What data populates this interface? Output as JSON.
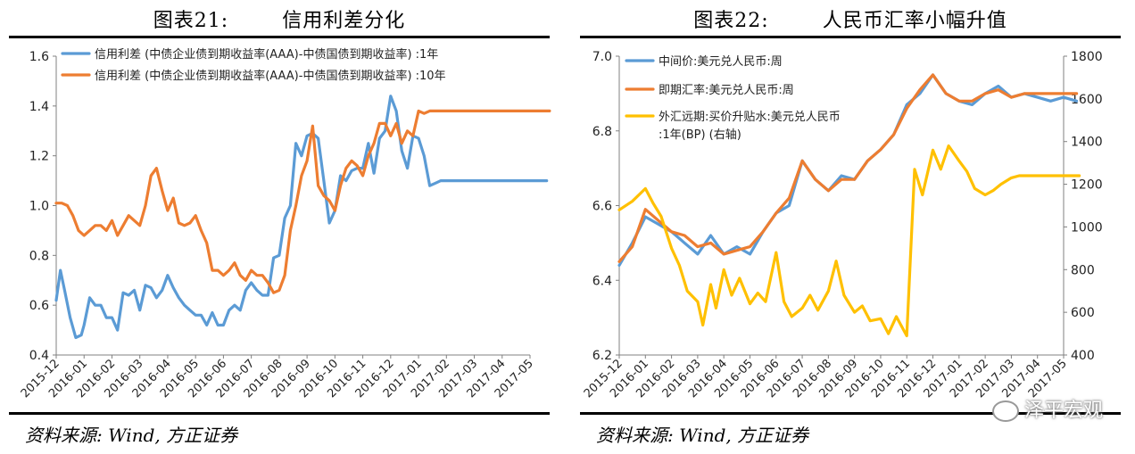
{
  "left": {
    "title_num": "图表21:",
    "title_text": "信用利差分化",
    "source": "资料来源: Wind, 方正证券"
  },
  "right": {
    "title_num": "图表22:",
    "title_text": "人民币汇率小幅升值",
    "source": "资料来源: Wind, 方正证券"
  },
  "watermark": "泽平宏观",
  "chart_data": [
    {
      "type": "line",
      "title": "信用利差分化",
      "x_ticks": [
        "2015-12",
        "2016-01",
        "2016-02",
        "2016-03",
        "2016-04",
        "2016-05",
        "2016-06",
        "2016-07",
        "2016-08",
        "2016-09",
        "2016-10",
        "2016-11",
        "2016-12",
        "2017-01",
        "2017-02",
        "2017-03",
        "2017-04",
        "2017-05"
      ],
      "ylim": [
        0.4,
        1.6
      ],
      "y_ticks": [
        "0.4",
        "0.6",
        "0.8",
        "1.0",
        "1.2",
        "1.4",
        "1.6"
      ],
      "legend_position": "top-left",
      "series": [
        {
          "name": "信用利差 (中债企业债到期收益率(AAA)-中债国债到期收益率) :1年",
          "color": "#5b9bd5",
          "x": [
            0,
            0.15,
            0.3,
            0.5,
            0.7,
            0.9,
            1.0,
            1.2,
            1.4,
            1.6,
            1.8,
            2.0,
            2.2,
            2.4,
            2.6,
            2.8,
            3.0,
            3.2,
            3.4,
            3.6,
            3.8,
            4.0,
            4.2,
            4.4,
            4.6,
            4.8,
            5.0,
            5.2,
            5.4,
            5.6,
            5.8,
            6.0,
            6.2,
            6.4,
            6.6,
            6.8,
            7.0,
            7.2,
            7.4,
            7.6,
            7.8,
            8.0,
            8.2,
            8.4,
            8.6,
            8.8,
            9.0,
            9.2,
            9.4,
            9.6,
            9.8,
            10.0,
            10.2,
            10.4,
            10.6,
            10.8,
            11.0,
            11.2,
            11.4,
            11.6,
            11.8,
            12.0,
            12.2,
            12.4,
            12.6,
            12.8,
            13.0,
            13.2,
            13.4,
            13.6,
            13.8,
            14.0,
            14.2,
            14.4,
            14.6,
            14.8,
            15.0,
            15.2,
            15.4,
            15.6,
            15.8,
            16.0,
            16.2,
            16.4,
            16.6,
            16.8,
            17.0,
            17.2,
            17.4,
            17.6
          ],
          "y": [
            0.62,
            0.74,
            0.66,
            0.55,
            0.47,
            0.48,
            0.52,
            0.63,
            0.6,
            0.6,
            0.55,
            0.55,
            0.5,
            0.65,
            0.64,
            0.66,
            0.58,
            0.68,
            0.67,
            0.63,
            0.66,
            0.72,
            0.67,
            0.63,
            0.6,
            0.58,
            0.56,
            0.56,
            0.52,
            0.57,
            0.52,
            0.52,
            0.58,
            0.6,
            0.58,
            0.66,
            0.69,
            0.66,
            0.64,
            0.64,
            0.79,
            0.8,
            0.95,
            1.0,
            1.25,
            1.2,
            1.28,
            1.29,
            1.27,
            1.1,
            0.93,
            0.98,
            1.12,
            1.1,
            1.14,
            1.15,
            1.15,
            1.25,
            1.13,
            1.27,
            1.3,
            1.44,
            1.38,
            1.22,
            1.15,
            1.28,
            1.27,
            1.2,
            1.08,
            1.09,
            1.1,
            1.1,
            1.1,
            1.1,
            1.1,
            1.1,
            1.1,
            1.1,
            1.1,
            1.1,
            1.1,
            1.1,
            1.1,
            1.1,
            1.1,
            1.1,
            1.1,
            1.1,
            1.1,
            1.1
          ]
        },
        {
          "name": "信用利差 (中债企业债到期收益率(AAA)-中债国债到期收益率) :10年",
          "color": "#ed7d31",
          "x": [
            0,
            0.2,
            0.4,
            0.6,
            0.8,
            1.0,
            1.2,
            1.4,
            1.6,
            1.8,
            2.0,
            2.2,
            2.4,
            2.6,
            2.8,
            3.0,
            3.2,
            3.4,
            3.6,
            3.8,
            4.0,
            4.2,
            4.4,
            4.6,
            4.8,
            5.0,
            5.2,
            5.4,
            5.6,
            5.8,
            6.0,
            6.2,
            6.4,
            6.6,
            6.8,
            7.0,
            7.2,
            7.4,
            7.6,
            7.8,
            8.0,
            8.2,
            8.4,
            8.6,
            8.8,
            9.0,
            9.2,
            9.4,
            9.6,
            9.8,
            10.0,
            10.2,
            10.4,
            10.6,
            10.8,
            11.0,
            11.2,
            11.4,
            11.6,
            11.8,
            12.0,
            12.2,
            12.4,
            12.6,
            12.8,
            13.0,
            13.2,
            13.4,
            13.6,
            13.8,
            14.0,
            14.2,
            14.4,
            14.6,
            14.8,
            15.0,
            15.2,
            15.4,
            15.6,
            15.8,
            16.0,
            16.2,
            16.4,
            16.6,
            16.8,
            17.0,
            17.2,
            17.4,
            17.6,
            17.7
          ],
          "y": [
            1.01,
            1.01,
            1.0,
            0.96,
            0.9,
            0.88,
            0.9,
            0.92,
            0.92,
            0.9,
            0.94,
            0.88,
            0.92,
            0.96,
            0.94,
            0.92,
            1.0,
            1.12,
            1.15,
            1.06,
            0.98,
            1.03,
            0.93,
            0.92,
            0.93,
            0.96,
            0.9,
            0.85,
            0.74,
            0.74,
            0.72,
            0.74,
            0.77,
            0.72,
            0.7,
            0.74,
            0.72,
            0.72,
            0.69,
            0.65,
            0.66,
            0.72,
            0.9,
            1.0,
            1.12,
            1.18,
            1.32,
            1.08,
            1.04,
            1.02,
            0.98,
            1.08,
            1.15,
            1.18,
            1.16,
            1.12,
            1.2,
            1.25,
            1.33,
            1.33,
            1.28,
            1.33,
            1.25,
            1.3,
            1.28,
            1.38,
            1.37,
            1.38,
            1.38,
            1.38,
            1.38,
            1.38,
            1.38,
            1.38,
            1.38,
            1.38,
            1.38,
            1.38,
            1.38,
            1.38,
            1.38,
            1.38,
            1.38,
            1.38,
            1.38,
            1.38,
            1.38,
            1.38,
            1.38,
            1.38
          ]
        }
      ]
    },
    {
      "type": "line",
      "title": "人民币汇率小幅升值",
      "x_ticks": [
        "2015-12",
        "2016-01",
        "2016-02",
        "2016-03",
        "2016-04",
        "2016-05",
        "2016-06",
        "2016-07",
        "2016-08",
        "2016-09",
        "2016-10",
        "2016-11",
        "2016-12",
        "2017-01",
        "2017-02",
        "2017-03",
        "2017-04",
        "2017-05"
      ],
      "ylim": [
        6.2,
        7.0
      ],
      "y_ticks": [
        "6.2",
        "6.4",
        "6.6",
        "6.8",
        "7.0"
      ],
      "y2lim": [
        400,
        1800
      ],
      "y2_ticks": [
        "400",
        "600",
        "800",
        "1000",
        "1200",
        "1400",
        "1600",
        "1800"
      ],
      "legend_position": "top-left",
      "series": [
        {
          "name": "中间价:美元兑人民币:周",
          "color": "#5b9bd5",
          "axis": "left",
          "x": [
            0,
            0.5,
            1.0,
            1.5,
            2.0,
            2.5,
            3.0,
            3.5,
            4.0,
            4.5,
            5.0,
            5.5,
            6.0,
            6.5,
            7.0,
            7.5,
            8.0,
            8.5,
            9.0,
            9.5,
            10.0,
            10.5,
            11.0,
            11.5,
            12.0,
            12.5,
            13.0,
            13.5,
            14.0,
            14.5,
            15.0,
            15.5,
            16.0,
            16.5,
            17.0,
            17.5
          ],
          "y": [
            6.44,
            6.5,
            6.57,
            6.55,
            6.53,
            6.5,
            6.47,
            6.52,
            6.47,
            6.49,
            6.47,
            6.53,
            6.58,
            6.6,
            6.72,
            6.67,
            6.64,
            6.68,
            6.67,
            6.72,
            6.75,
            6.79,
            6.87,
            6.9,
            6.95,
            6.9,
            6.88,
            6.87,
            6.9,
            6.92,
            6.89,
            6.9,
            6.89,
            6.88,
            6.89,
            6.88
          ]
        },
        {
          "name": "即期汇率:美元兑人民币:周",
          "color": "#ed7d31",
          "axis": "left",
          "x": [
            0,
            0.5,
            1.0,
            1.5,
            2.0,
            2.5,
            3.0,
            3.5,
            4.0,
            4.5,
            5.0,
            5.5,
            6.0,
            6.5,
            7.0,
            7.5,
            8.0,
            8.5,
            9.0,
            9.5,
            10.0,
            10.5,
            11.0,
            11.5,
            12.0,
            12.5,
            13.0,
            13.5,
            14.0,
            14.5,
            15.0,
            15.5,
            16.0,
            16.5,
            17.0,
            17.5
          ],
          "y": [
            6.45,
            6.49,
            6.59,
            6.56,
            6.53,
            6.52,
            6.49,
            6.5,
            6.47,
            6.48,
            6.49,
            6.53,
            6.58,
            6.62,
            6.72,
            6.67,
            6.64,
            6.67,
            6.67,
            6.72,
            6.75,
            6.79,
            6.86,
            6.91,
            6.95,
            6.9,
            6.88,
            6.88,
            6.9,
            6.91,
            6.89,
            6.9,
            6.9,
            6.9,
            6.9,
            6.9
          ]
        },
        {
          "name": "外汇远期:买价升贴水:美元兑人民币:1年(BP) (右轴)",
          "color": "#ffc000",
          "axis": "right",
          "x": [
            0,
            0.5,
            1.0,
            1.3,
            1.6,
            2.0,
            2.3,
            2.6,
            3.0,
            3.2,
            3.5,
            3.7,
            4.0,
            4.3,
            4.6,
            5.0,
            5.3,
            5.6,
            6.0,
            6.3,
            6.6,
            7.0,
            7.3,
            7.6,
            8.0,
            8.3,
            8.6,
            9.0,
            9.3,
            9.6,
            10.0,
            10.3,
            10.6,
            11.0,
            11.3,
            11.6,
            12.0,
            12.3,
            12.6,
            13.0,
            13.3,
            13.6,
            14.0,
            14.3,
            14.6,
            15.0,
            15.3,
            15.6,
            16.0,
            16.3,
            16.6,
            17.0,
            17.3,
            17.6
          ],
          "y": [
            1080,
            1120,
            1180,
            1110,
            1050,
            900,
            820,
            700,
            650,
            540,
            730,
            620,
            800,
            680,
            760,
            640,
            690,
            650,
            880,
            650,
            580,
            620,
            680,
            610,
            700,
            840,
            680,
            600,
            630,
            560,
            570,
            500,
            580,
            490,
            1270,
            1150,
            1360,
            1270,
            1380,
            1310,
            1260,
            1180,
            1150,
            1170,
            1200,
            1230,
            1240,
            1240,
            1240,
            1240,
            1240,
            1240,
            1240,
            1240
          ]
        }
      ]
    }
  ]
}
